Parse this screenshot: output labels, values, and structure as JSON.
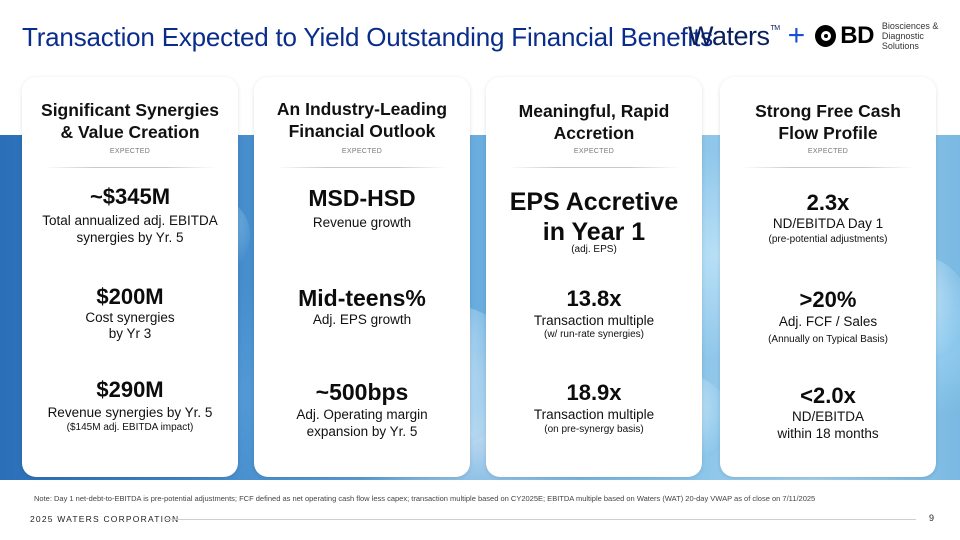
{
  "title": "Transaction Expected to Yield Outstanding Financial Benefits",
  "logos": {
    "waters": "Waters",
    "waters_tm": "TM",
    "plus": "+",
    "bd": "BD",
    "bd_sub_line1": "Biosciences &",
    "bd_sub_line2": "Diagnostic Solutions"
  },
  "cards": [
    {
      "title_lines": [
        "Significant Synergies",
        "& Value Creation"
      ],
      "expected": "EXPECTED",
      "m1": {
        "value": "~$345M",
        "sub1": "Total annualized adj. EBITDA",
        "sub2": "synergies by Yr. 5"
      },
      "m2": {
        "value": "$200M",
        "sub1": "Cost synergies",
        "sub2": "by Yr 3"
      },
      "m3": {
        "value": "$290M",
        "sub1": "Revenue synergies by Yr. 5",
        "small": "($145M adj. EBITDA impact)"
      }
    },
    {
      "title_lines": [
        "An Industry-Leading",
        "Financial Outlook"
      ],
      "expected": "EXPECTED",
      "m1": {
        "value": "MSD-HSD",
        "sub1": "Revenue growth"
      },
      "m2": {
        "value": "Mid-teens%",
        "sub1": "Adj. EPS growth"
      },
      "m3": {
        "value": "~500bps",
        "sub1": "Adj. Operating margin",
        "sub2": "expansion by Yr. 5"
      }
    },
    {
      "title_lines": [
        "Meaningful, Rapid",
        "Accretion"
      ],
      "expected": "EXPECTED",
      "m1": {
        "value1": "EPS Accretive",
        "value2": "in Year 1",
        "small": "(adj. EPS)"
      },
      "m2": {
        "value": "13.8x",
        "sub1": "Transaction multiple",
        "small": "(w/ run-rate synergies)"
      },
      "m3": {
        "value": "18.9x",
        "sub1": "Transaction multiple",
        "small": "(on pre-synergy basis)"
      }
    },
    {
      "title_lines": [
        "Strong Free Cash",
        "Flow Profile"
      ],
      "expected": "EXPECTED",
      "m1": {
        "value": "2.3x",
        "sub1": "ND/EBITDA Day 1",
        "small": "(pre-potential adjustments)"
      },
      "m2": {
        "value": ">20%",
        "sub1": "Adj. FCF / Sales",
        "small": "(Annually on Typical Basis)"
      },
      "m3": {
        "value": "<2.0x",
        "sub1": "ND/EBITDA",
        "sub2": "within 18 months"
      }
    }
  ],
  "note": "Note: Day 1 net-debt-to-EBITDA is pre-potential adjustments; FCF defined as net operating cash flow less capex; transaction multiple based on CY2025E; EBITDA multiple based on Waters (WAT) 20-day VWAP as of close on 7/11/2025",
  "footer": {
    "left": "2025 WATERS CORPORATION",
    "page": "9"
  },
  "colors": {
    "title": "#0a2d8c",
    "plus": "#1a4fd1",
    "band": "#4a90d0"
  }
}
